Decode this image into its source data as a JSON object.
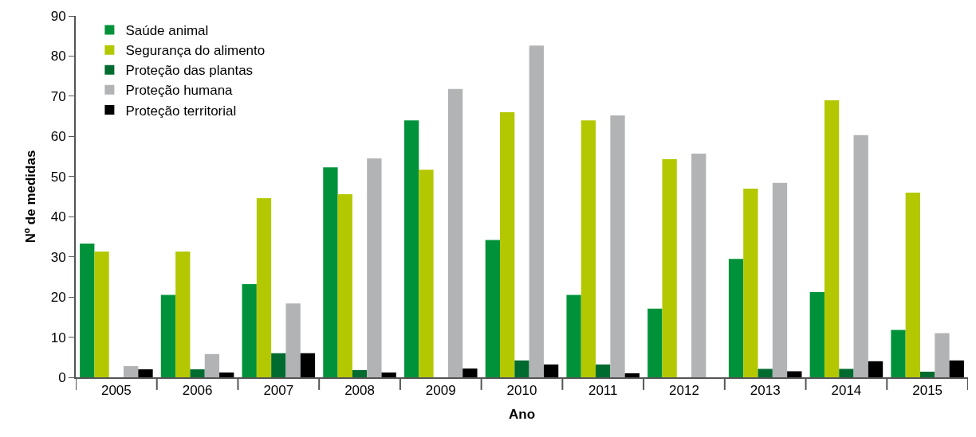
{
  "chart_data": {
    "type": "bar",
    "xlabel": "Ano",
    "ylabel": "Nº de medidas",
    "categories": [
      "2005",
      "2006",
      "2007",
      "2008",
      "2009",
      "2010",
      "2011",
      "2012",
      "2013",
      "2014",
      "2015"
    ],
    "series": [
      {
        "name": "Saúde animal",
        "color": "#00923a",
        "values": [
          33.3,
          20.5,
          23.2,
          52.3,
          64,
          34.2,
          20.5,
          17.1,
          29.5,
          21.2,
          11.8
        ]
      },
      {
        "name": "Segurança do alimento",
        "color": "#b3c800",
        "values": [
          31.3,
          31.3,
          44.6,
          45.6,
          51.7,
          66,
          64,
          54.3,
          47,
          69,
          46
        ]
      },
      {
        "name": "Proteção das plantas",
        "color": "#006b2f",
        "values": [
          0,
          2,
          6,
          1.8,
          0,
          4.2,
          3.2,
          0,
          2.1,
          2.1,
          1.4
        ]
      },
      {
        "name": "Proteção humana",
        "color": "#b2b3b5",
        "values": [
          2.8,
          5.8,
          18.4,
          54.5,
          71.8,
          82.6,
          65.2,
          55.7,
          48.4,
          60.3,
          11
        ]
      },
      {
        "name": "Proteção territorial",
        "color": "#000000",
        "values": [
          2,
          1.2,
          6,
          1.2,
          2.2,
          3.2,
          1,
          0,
          1.5,
          4,
          4.2
        ]
      }
    ],
    "ylim": [
      0,
      90
    ],
    "yticks": [
      0,
      10,
      20,
      30,
      40,
      50,
      60,
      70,
      80,
      90
    ],
    "legend": "top left"
  }
}
